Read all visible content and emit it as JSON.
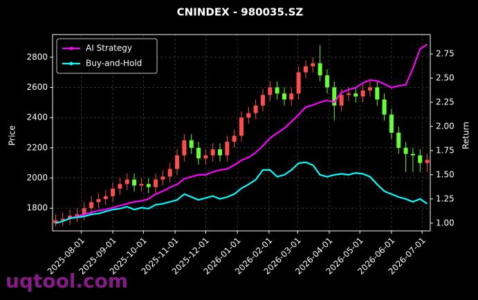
{
  "chart_data": {
    "type": "candlestick",
    "title": "CNINDEX - 980035.SZ",
    "ylabel": "Price",
    "y2label": "Return",
    "watermark": "uqtool.com",
    "x": [
      "2025-07-07",
      "2025-07-14",
      "2025-07-21",
      "2025-07-28",
      "2025-08-04",
      "2025-08-11",
      "2025-08-18",
      "2025-08-25",
      "2025-09-01",
      "2025-09-08",
      "2025-09-15",
      "2025-09-22",
      "2025-09-29",
      "2025-10-06",
      "2025-10-13",
      "2025-10-20",
      "2025-10-27",
      "2025-11-03",
      "2025-11-10",
      "2025-11-17",
      "2025-11-24",
      "2025-12-01",
      "2025-12-08",
      "2025-12-15",
      "2025-12-22",
      "2025-12-29",
      "2026-01-05",
      "2026-01-12",
      "2026-01-19",
      "2026-01-26",
      "2026-02-02",
      "2026-02-09",
      "2026-02-16",
      "2026-02-23",
      "2026-03-02",
      "2026-03-09",
      "2026-03-16",
      "2026-03-23",
      "2026-03-30",
      "2026-04-06",
      "2026-04-13",
      "2026-04-20",
      "2026-04-27",
      "2026-05-04",
      "2026-05-11",
      "2026-05-18",
      "2026-05-25",
      "2026-06-01",
      "2026-06-08",
      "2026-06-15",
      "2026-06-22",
      "2026-06-29",
      "2026-07-06"
    ],
    "xlim": [
      "2025-07-04",
      "2026-07-09"
    ],
    "xticks": [
      "2025-08-01",
      "2025-09-01",
      "2025-10-01",
      "2025-11-01",
      "2025-12-01",
      "2026-01-01",
      "2026-02-01",
      "2026-03-01",
      "2026-04-01",
      "2026-05-01",
      "2026-06-01",
      "2026-07-01"
    ],
    "ylim": [
      1650,
      2950
    ],
    "yticks": [
      1800,
      2000,
      2200,
      2400,
      2600,
      2800
    ],
    "y2lim": [
      0.92,
      2.95
    ],
    "y2ticks": [
      {
        "value": 1,
        "label": "1.00"
      },
      1.25,
      {
        "value": 1.5,
        "label": "1.50"
      },
      1.75,
      {
        "value": 2,
        "label": "2.00"
      },
      2.25,
      {
        "value": 2.5,
        "label": "2.50"
      },
      2.75
    ],
    "grid": true,
    "legend": "upper left",
    "candles": {
      "up_color": "#ff4d4d",
      "down_color": "#66ff33",
      "open": [
        1700,
        1720,
        1730,
        1750,
        1760,
        1800,
        1840,
        1860,
        1880,
        1930,
        1960,
        1990,
        1950,
        1960,
        1940,
        1990,
        2010,
        2060,
        2150,
        2250,
        2200,
        2130,
        2150,
        2190,
        2150,
        2240,
        2280,
        2400,
        2430,
        2480,
        2550,
        2600,
        2560,
        2520,
        2560,
        2700,
        2740,
        2760,
        2680,
        2600,
        2480,
        2550,
        2560,
        2540,
        2580,
        2600,
        2520,
        2420,
        2300,
        2200,
        2160,
        2150,
        2100
      ],
      "high": [
        1760,
        1770,
        1790,
        1800,
        1840,
        1880,
        1900,
        1920,
        1970,
        2000,
        2030,
        2030,
        2000,
        2000,
        2030,
        2050,
        2100,
        2190,
        2290,
        2290,
        2240,
        2190,
        2230,
        2230,
        2280,
        2320,
        2440,
        2470,
        2520,
        2590,
        2640,
        2640,
        2600,
        2600,
        2740,
        2780,
        2800,
        2880,
        2720,
        2640,
        2590,
        2600,
        2600,
        2620,
        2640,
        2640,
        2560,
        2460,
        2340,
        2240,
        2200,
        2190,
        2160
      ],
      "low": [
        1680,
        1680,
        1690,
        1710,
        1720,
        1760,
        1800,
        1820,
        1840,
        1890,
        1920,
        1910,
        1910,
        1900,
        1900,
        1950,
        1970,
        2020,
        2110,
        2160,
        2090,
        2090,
        2110,
        2110,
        2110,
        2200,
        2240,
        2360,
        2390,
        2440,
        2510,
        2520,
        2480,
        2480,
        2520,
        2660,
        2700,
        2640,
        2560,
        2380,
        2440,
        2510,
        2500,
        2500,
        2540,
        2480,
        2380,
        2260,
        2160,
        2040,
        2040,
        2040,
        2040
      ],
      "close": [
        1720,
        1730,
        1750,
        1760,
        1800,
        1840,
        1860,
        1880,
        1930,
        1960,
        1990,
        1950,
        1960,
        1940,
        1990,
        2010,
        2060,
        2150,
        2250,
        2200,
        2130,
        2150,
        2190,
        2150,
        2240,
        2280,
        2400,
        2430,
        2480,
        2550,
        2600,
        2560,
        2520,
        2560,
        2700,
        2740,
        2760,
        2680,
        2600,
        2480,
        2550,
        2560,
        2540,
        2580,
        2600,
        2520,
        2420,
        2300,
        2200,
        2160,
        2150,
        2100,
        2120
      ]
    },
    "series": [
      {
        "name": "AI Strategy",
        "color": "#ff00ff",
        "axis": "y2",
        "values": [
          1.0,
          1.02,
          1.05,
          1.07,
          1.09,
          1.11,
          1.13,
          1.14,
          1.16,
          1.18,
          1.2,
          1.22,
          1.23,
          1.25,
          1.3,
          1.33,
          1.37,
          1.4,
          1.46,
          1.48,
          1.5,
          1.5,
          1.53,
          1.55,
          1.56,
          1.6,
          1.65,
          1.68,
          1.73,
          1.8,
          1.88,
          1.93,
          1.98,
          2.05,
          2.12,
          2.2,
          2.22,
          2.25,
          2.27,
          2.25,
          2.35,
          2.38,
          2.4,
          2.45,
          2.48,
          2.47,
          2.44,
          2.4,
          2.42,
          2.43,
          2.6,
          2.8,
          2.85
        ]
      },
      {
        "name": "Buy-and-Hold",
        "color": "#00ffff",
        "axis": "y2",
        "values": [
          1.0,
          1.02,
          1.05,
          1.06,
          1.07,
          1.09,
          1.1,
          1.12,
          1.14,
          1.15,
          1.17,
          1.14,
          1.16,
          1.15,
          1.19,
          1.2,
          1.22,
          1.24,
          1.3,
          1.27,
          1.24,
          1.26,
          1.28,
          1.25,
          1.27,
          1.3,
          1.36,
          1.4,
          1.45,
          1.55,
          1.55,
          1.48,
          1.5,
          1.55,
          1.62,
          1.63,
          1.6,
          1.5,
          1.48,
          1.5,
          1.51,
          1.5,
          1.52,
          1.51,
          1.48,
          1.4,
          1.33,
          1.3,
          1.27,
          1.25,
          1.22,
          1.25,
          1.2
        ]
      }
    ]
  }
}
